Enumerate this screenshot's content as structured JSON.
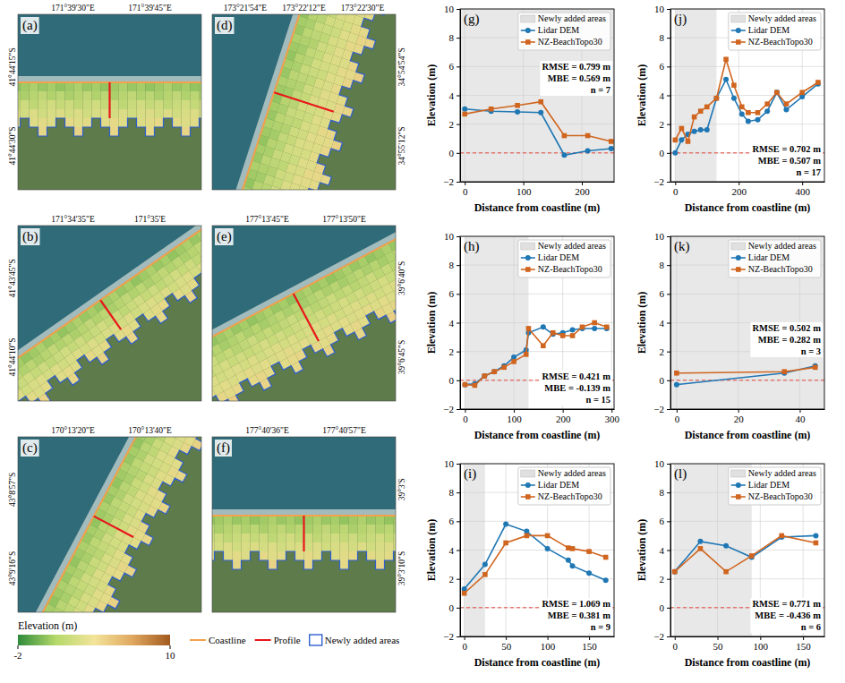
{
  "chart_data": [
    {
      "type": "line",
      "title": "(g)",
      "xlabel": "Distance from coastline (m)",
      "ylabel": "Elevation (m)",
      "xlim": [
        -8,
        255
      ],
      "xticks": [
        0,
        100,
        200
      ],
      "ylim": [
        -2,
        10
      ],
      "yticks": [
        {
          "value": -2,
          "label": "−2"
        },
        0,
        2,
        4,
        6,
        8,
        10
      ],
      "grid": true,
      "legend": "upper right",
      "x": [
        0,
        45,
        90,
        130,
        170,
        210,
        250
      ],
      "series": [
        {
          "name": "Lidar DEM",
          "color": "#1f77b4",
          "marker": "circle",
          "values": [
            3.05,
            2.9,
            2.85,
            2.8,
            -0.15,
            0.15,
            0.3
          ]
        },
        {
          "name": "NZ-BeachTopo30",
          "color": "#d0651f",
          "marker": "square",
          "values": [
            2.7,
            3.05,
            3.3,
            3.55,
            1.2,
            1.2,
            0.8
          ]
        }
      ],
      "shaded": {
        "name": "Newly added areas",
        "color": "#e0e0e0",
        "x": [
          -8,
          255
        ]
      },
      "hline": {
        "value": 0,
        "color": "#e8453c",
        "line_style": "dashed"
      },
      "annotations": [
        "RMSE = 0.799 m",
        "MBE = 0.569 m",
        "n = 7"
      ]
    },
    {
      "type": "line",
      "title": "(h)",
      "xlabel": "Distance from coastline (m)",
      "ylabel": "Elevation (m)",
      "xlim": [
        -10,
        305
      ],
      "xticks": [
        0,
        100,
        200,
        300
      ],
      "ylim": [
        -2,
        10
      ],
      "yticks": [
        {
          "value": -2,
          "label": "−2"
        },
        0,
        2,
        4,
        6,
        8,
        10
      ],
      "grid": true,
      "legend": "upper right",
      "x": [
        0,
        20,
        40,
        60,
        80,
        100,
        125,
        130,
        160,
        180,
        200,
        220,
        240,
        265,
        290
      ],
      "series": [
        {
          "name": "Lidar DEM",
          "color": "#1f77b4",
          "marker": "circle",
          "values": [
            -0.3,
            -0.25,
            0.3,
            0.6,
            1.0,
            1.6,
            2.1,
            3.3,
            3.7,
            3.2,
            3.3,
            3.5,
            3.6,
            3.6,
            3.6
          ]
        },
        {
          "name": "NZ-BeachTopo30",
          "color": "#d0651f",
          "marker": "square",
          "values": [
            -0.3,
            -0.35,
            0.3,
            0.6,
            0.9,
            1.3,
            1.8,
            3.6,
            2.4,
            3.3,
            3.1,
            3.1,
            3.7,
            4.0,
            3.7
          ]
        }
      ],
      "shaded": {
        "name": "Newly added areas",
        "color": "#e0e0e0",
        "x": [
          0,
          130
        ]
      },
      "hline": {
        "value": 0,
        "color": "#e8453c",
        "line_style": "dashed"
      },
      "annotations": [
        "RMSE = 0.421 m",
        "MBE = -0.139 m",
        "n = 15"
      ]
    },
    {
      "type": "line",
      "title": "(i)",
      "xlabel": "Distance from coastline (m)",
      "ylabel": "Elevation (m)",
      "xlim": [
        -5,
        180
      ],
      "xticks": [
        0,
        50,
        100,
        150
      ],
      "ylim": [
        -2,
        10
      ],
      "yticks": [
        {
          "value": -2,
          "label": "−2"
        },
        0,
        2,
        4,
        6,
        8,
        10
      ],
      "grid": true,
      "legend": "upper right",
      "x": [
        0,
        25,
        50,
        75,
        100,
        125,
        130,
        150,
        170
      ],
      "series": [
        {
          "name": "Lidar DEM",
          "color": "#1f77b4",
          "marker": "circle",
          "values": [
            1.3,
            3.0,
            5.8,
            5.3,
            4.1,
            3.3,
            2.9,
            2.4,
            1.9
          ]
        },
        {
          "name": "NZ-BeachTopo30",
          "color": "#d0651f",
          "marker": "square",
          "values": [
            1.0,
            2.3,
            4.5,
            5.0,
            5.0,
            4.15,
            4.1,
            3.9,
            3.5
          ]
        }
      ],
      "shaded": {
        "name": "Newly added areas",
        "color": "#e0e0e0",
        "x": [
          0,
          25
        ]
      },
      "hline": {
        "value": 0,
        "color": "#e8453c",
        "line_style": "dashed"
      },
      "annotations": [
        "RMSE = 1.069 m",
        "MBE = 0.381 m",
        "n = 9"
      ]
    },
    {
      "type": "line",
      "title": "(j)",
      "xlabel": "Distance from coastline (m)",
      "ylabel": "Elevation (m)",
      "xlim": [
        -15,
        470
      ],
      "xticks": [
        0,
        200,
        400
      ],
      "ylim": [
        -2,
        10
      ],
      "yticks": [
        {
          "value": -2,
          "label": "−2"
        },
        0,
        2,
        4,
        6,
        8,
        10
      ],
      "grid": true,
      "legend": "upper right",
      "x": [
        0,
        20,
        40,
        60,
        80,
        100,
        130,
        160,
        185,
        210,
        230,
        260,
        290,
        320,
        350,
        400,
        450
      ],
      "series": [
        {
          "name": "Lidar DEM",
          "color": "#1f77b4",
          "marker": "circle",
          "values": [
            0.0,
            0.9,
            1.3,
            1.5,
            1.6,
            1.6,
            3.8,
            5.1,
            3.8,
            2.7,
            2.2,
            2.3,
            2.9,
            4.2,
            3.0,
            3.9,
            4.8
          ]
        },
        {
          "name": "NZ-BeachTopo30",
          "color": "#d0651f",
          "marker": "square",
          "values": [
            0.9,
            1.7,
            0.8,
            2.5,
            2.9,
            3.2,
            3.8,
            6.5,
            4.7,
            3.2,
            2.8,
            2.8,
            3.4,
            4.2,
            3.4,
            4.2,
            4.9
          ]
        }
      ],
      "shaded": {
        "name": "Newly added areas",
        "color": "#e0e0e0",
        "x": [
          0,
          130
        ]
      },
      "hline": {
        "value": 0,
        "color": "#e8453c",
        "line_style": "dashed"
      },
      "annotations": [
        "RMSE = 0.702 m",
        "MBE = 0.507 m",
        "n = 17"
      ]
    },
    {
      "type": "line",
      "title": "(k)",
      "xlabel": "Distance from coastline (m)",
      "ylabel": "Elevation (m)",
      "xlim": [
        -2,
        48
      ],
      "xticks": [
        0,
        20,
        40
      ],
      "ylim": [
        -2,
        10
      ],
      "yticks": [
        {
          "value": -2,
          "label": "−2"
        },
        0,
        2,
        4,
        6,
        8,
        10
      ],
      "grid": true,
      "legend": "upper right",
      "x": [
        0,
        35,
        45
      ],
      "series": [
        {
          "name": "Lidar DEM",
          "color": "#1f77b4",
          "marker": "circle",
          "values": [
            -0.3,
            0.5,
            1.0
          ]
        },
        {
          "name": "NZ-BeachTopo30",
          "color": "#d0651f",
          "marker": "square",
          "values": [
            0.5,
            0.6,
            0.9
          ]
        }
      ],
      "shaded": {
        "name": "Newly added areas",
        "color": "#e0e0e0",
        "x": [
          -2,
          48
        ]
      },
      "hline": {
        "value": 0,
        "color": "#e8453c",
        "line_style": "dashed"
      },
      "annotations": [
        "RMSE = 0.502 m",
        "MBE = 0.282 m",
        "n = 3"
      ]
    },
    {
      "type": "line",
      "title": "(l)",
      "xlabel": "Distance from coastline (m)",
      "ylabel": "Elevation (m)",
      "xlim": [
        -5,
        175
      ],
      "xticks": [
        0,
        50,
        100,
        150
      ],
      "ylim": [
        -2,
        10
      ],
      "yticks": [
        {
          "value": -2,
          "label": "−2"
        },
        0,
        2,
        4,
        6,
        8,
        10
      ],
      "grid": true,
      "legend": "upper right",
      "x": [
        0,
        30,
        60,
        90,
        125,
        165
      ],
      "series": [
        {
          "name": "Lidar DEM",
          "color": "#1f77b4",
          "marker": "circle",
          "values": [
            2.5,
            4.6,
            4.3,
            3.5,
            4.9,
            5.0
          ]
        },
        {
          "name": "NZ-BeachTopo30",
          "color": "#d0651f",
          "marker": "square",
          "values": [
            2.5,
            4.1,
            2.5,
            3.6,
            5.0,
            4.5
          ]
        }
      ],
      "shaded": {
        "name": "Newly added areas",
        "color": "#e0e0e0",
        "x": [
          0,
          90
        ]
      },
      "hline": {
        "value": 0,
        "color": "#e8453c",
        "line_style": "dashed"
      },
      "annotations": [
        "RMSE = 0.771 m",
        "MBE = -0.436 m",
        "n = 6"
      ]
    }
  ],
  "maps": [
    {
      "label": "(a)",
      "lon_ticks": [
        "171°39'30\"E",
        "171°39'45\"E"
      ],
      "lat_ticks": [
        "41°44'15\"S",
        "41°44'30\"S"
      ]
    },
    {
      "label": "(b)",
      "lon_ticks": [
        "171°34'35\"E",
        "171°35'E"
      ],
      "lat_ticks": [
        "41°43'45\"S",
        "41°44'10\"S"
      ]
    },
    {
      "label": "(c)",
      "lon_ticks": [
        "170°13'20\"E",
        "170°13'40\"E"
      ],
      "lat_ticks": [
        "43°8'57\"S",
        "43°9'16\"S"
      ]
    },
    {
      "label": "(d)",
      "lon_ticks": [
        "173°21'54\"E",
        "173°22'12\"E",
        "173°22'30\"E"
      ],
      "lat_ticks": [
        "34°54'54\"S",
        "34°55'12\"S"
      ]
    },
    {
      "label": "(e)",
      "lon_ticks": [
        "177°13'45\"E",
        "177°13'50\"E"
      ],
      "lat_ticks": [
        "39°6'40\"S",
        "39°6'45\"S"
      ]
    },
    {
      "label": "(f)",
      "lon_ticks": [
        "177°40'36\"E",
        "177°40'57\"E"
      ],
      "lat_ticks": [
        "39°3'S",
        "39°3'10\"S"
      ]
    }
  ],
  "colorbar": {
    "title": "Elevation (m)",
    "range": [
      -2,
      10
    ],
    "ticks": [
      -2,
      10
    ],
    "colors": [
      "#2e8b3a",
      "#b5d96a",
      "#f3e49a",
      "#e0a860",
      "#a25a1e"
    ]
  },
  "map_legend": [
    {
      "name": "Coastline",
      "color": "#f4a24a",
      "marker": "line"
    },
    {
      "name": "Profile",
      "color": "#e8161b",
      "marker": "line"
    },
    {
      "name": "Newly added areas",
      "color": "#2f5fd0",
      "marker": "box"
    }
  ]
}
